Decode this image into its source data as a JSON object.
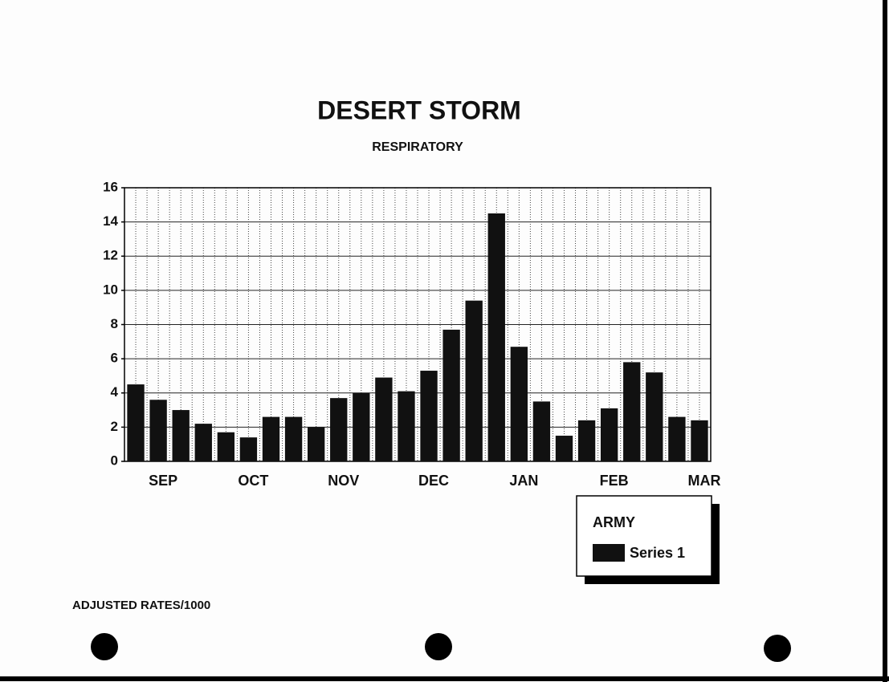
{
  "chart_data": {
    "type": "bar",
    "title": "DESERT STORM",
    "subtitle": "RESPIRATORY",
    "categories": [
      null,
      "SEP",
      null,
      null,
      null,
      "OCT",
      null,
      null,
      null,
      "NOV",
      null,
      null,
      null,
      "DEC",
      null,
      null,
      null,
      "JAN",
      null,
      null,
      null,
      "FEB",
      null,
      null,
      null,
      "MAR"
    ],
    "series": [
      {
        "name": "Series 1",
        "color": "#111111",
        "values": [
          4.5,
          3.6,
          3.0,
          2.2,
          1.7,
          1.4,
          2.6,
          2.6,
          2.0,
          3.7,
          4.0,
          4.9,
          4.1,
          5.3,
          7.7,
          9.4,
          14.5,
          6.7,
          3.5,
          1.5,
          2.4,
          3.1,
          5.8,
          5.2,
          2.6,
          2.4
        ]
      }
    ],
    "ylim": [
      0,
      16
    ],
    "yticks": [
      0,
      2,
      4,
      6,
      8,
      10,
      12,
      14,
      16
    ],
    "grid": true,
    "legend_title": "ARMY",
    "legend_position": "lower right",
    "footnote": "ADJUSTED RATES/1000"
  }
}
